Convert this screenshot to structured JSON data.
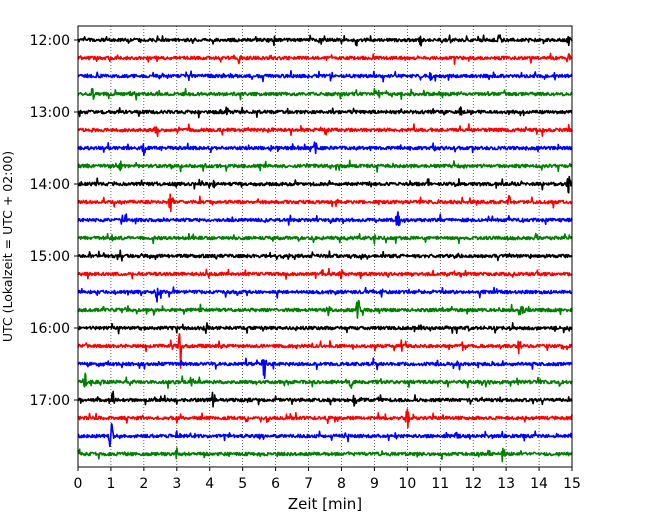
{
  "chart_data": {
    "type": "line",
    "xlabel": "Zeit  [min]",
    "ylabel": "UTC (Lokalzeit = UTC + 02:00)",
    "xlim": [
      0,
      15
    ],
    "x_ticks": [
      0,
      1,
      2,
      3,
      4,
      5,
      6,
      7,
      8,
      9,
      10,
      11,
      12,
      13,
      14,
      15
    ],
    "y_tick_labels": [
      "12:00",
      "13:00",
      "14:00",
      "15:00",
      "16:00",
      "17:00"
    ],
    "grid": "vertical-dotted",
    "trace_interval_minutes": 15,
    "trace_colors": [
      "#000000",
      "#ff0000",
      "#0000ff",
      "#008000"
    ],
    "traces": [
      {
        "start": "12:00",
        "color": "#000000",
        "events": [
          {
            "x": 10.4,
            "amp": 0.35
          },
          {
            "x": 12.8,
            "amp": 0.3
          },
          {
            "x": 14.9,
            "amp": 0.35
          }
        ]
      },
      {
        "start": "12:15",
        "color": "#ff0000",
        "events": [
          {
            "x": 4.9,
            "amp": 0.25
          },
          {
            "x": 14.9,
            "amp": 0.35
          }
        ]
      },
      {
        "start": "12:30",
        "color": "#0000ff",
        "events": [
          {
            "x": 7.7,
            "amp": 0.3
          },
          {
            "x": 10.7,
            "amp": 0.25
          }
        ]
      },
      {
        "start": "12:45",
        "color": "#008000",
        "events": [
          {
            "x": 0.45,
            "amp": 0.4
          }
        ]
      },
      {
        "start": "13:00",
        "color": "#000000",
        "events": [
          {
            "x": 11.6,
            "amp": 0.25
          }
        ]
      },
      {
        "start": "13:15",
        "color": "#ff0000",
        "events": [
          {
            "x": 2.35,
            "amp": 0.25
          },
          {
            "x": 14.1,
            "amp": 0.25
          }
        ]
      },
      {
        "start": "13:30",
        "color": "#0000ff",
        "events": [
          {
            "x": 2.0,
            "amp": 0.35
          },
          {
            "x": 7.2,
            "amp": 0.3
          },
          {
            "x": 10.8,
            "amp": 0.3
          }
        ]
      },
      {
        "start": "13:45",
        "color": "#008000",
        "events": [
          {
            "x": 1.3,
            "amp": 0.25
          }
        ]
      },
      {
        "start": "14:00",
        "color": "#000000",
        "events": [
          {
            "x": 4.1,
            "amp": 0.3
          },
          {
            "x": 14.9,
            "amp": 0.45
          }
        ]
      },
      {
        "start": "14:15",
        "color": "#ff0000",
        "events": [
          {
            "x": 2.8,
            "amp": 0.4
          },
          {
            "x": 13.1,
            "amp": 0.3
          }
        ]
      },
      {
        "start": "14:30",
        "color": "#0000ff",
        "events": [
          {
            "x": 9.7,
            "amp": 0.45
          }
        ]
      },
      {
        "start": "14:45",
        "color": "#008000",
        "events": []
      },
      {
        "start": "15:00",
        "color": "#000000",
        "events": [
          {
            "x": 0.35,
            "amp": 0.25
          }
        ]
      },
      {
        "start": "15:15",
        "color": "#ff0000",
        "events": [
          {
            "x": 8.0,
            "amp": 0.25
          }
        ]
      },
      {
        "start": "15:30",
        "color": "#0000ff",
        "events": [
          {
            "x": 2.4,
            "amp": 0.55
          }
        ]
      },
      {
        "start": "15:45",
        "color": "#008000",
        "events": [
          {
            "x": 7.6,
            "amp": 0.3
          },
          {
            "x": 8.5,
            "amp": 0.75
          },
          {
            "x": 13.5,
            "amp": 0.3
          }
        ]
      },
      {
        "start": "16:00",
        "color": "#000000",
        "events": [
          {
            "x": 3.9,
            "amp": 0.25
          }
        ]
      },
      {
        "start": "16:15",
        "color": "#ff0000",
        "events": [
          {
            "x": 3.1,
            "amp": 1.55
          },
          {
            "x": 13.4,
            "amp": 0.3
          }
        ]
      },
      {
        "start": "16:30",
        "color": "#0000ff",
        "events": [
          {
            "x": 5.65,
            "amp": 1.05
          }
        ]
      },
      {
        "start": "16:45",
        "color": "#008000",
        "events": [
          {
            "x": 0.2,
            "amp": 0.55
          },
          {
            "x": 3.45,
            "amp": 0.5
          },
          {
            "x": 8.3,
            "amp": 0.45
          },
          {
            "x": 14.6,
            "amp": 0.4
          }
        ]
      },
      {
        "start": "17:00",
        "color": "#000000",
        "events": [
          {
            "x": 1.05,
            "amp": 0.55
          },
          {
            "x": 4.1,
            "amp": 0.45
          },
          {
            "x": 8.4,
            "amp": 0.3
          }
        ]
      },
      {
        "start": "17:15",
        "color": "#ff0000",
        "events": [
          {
            "x": 10.0,
            "amp": 0.55
          }
        ]
      },
      {
        "start": "17:30",
        "color": "#0000ff",
        "events": [
          {
            "x": 1.0,
            "amp": 1.2
          },
          {
            "x": 11.5,
            "amp": 0.25
          }
        ]
      },
      {
        "start": "17:45",
        "color": "#008000",
        "events": [
          {
            "x": 3.0,
            "amp": 0.4
          },
          {
            "x": 12.9,
            "amp": 0.45
          }
        ]
      }
    ]
  }
}
